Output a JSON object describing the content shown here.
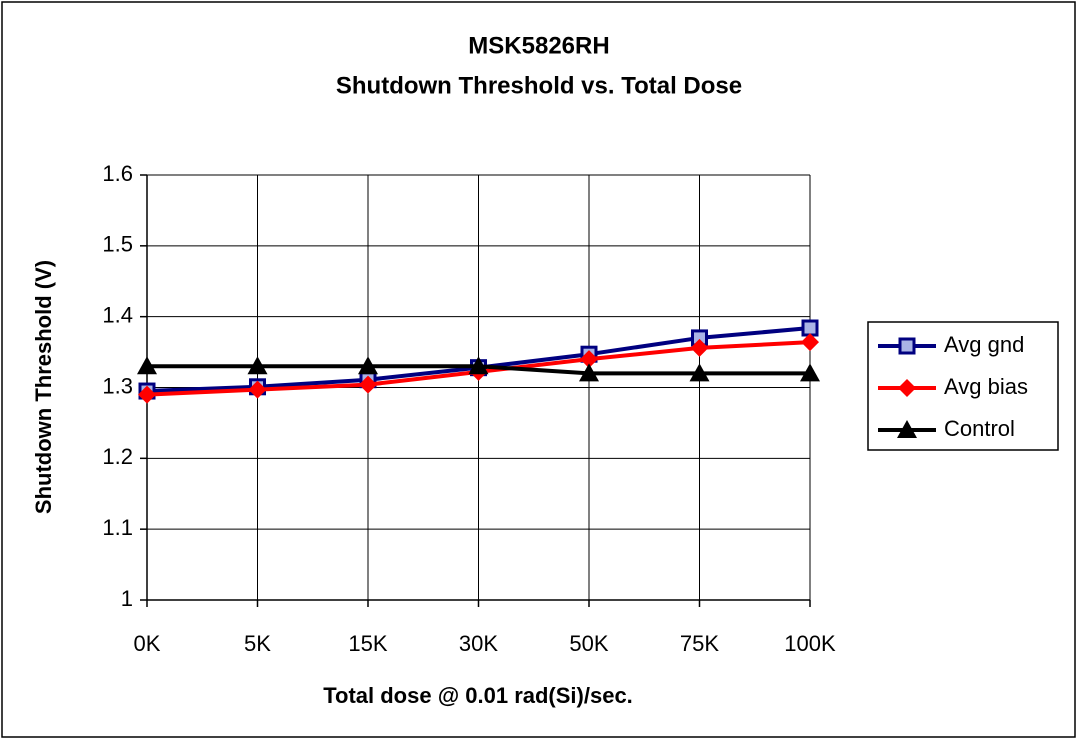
{
  "chart_data": {
    "type": "line",
    "title": "MSK5826RH",
    "subtitle": "Shutdown Threshold vs. Total Dose",
    "x_label": "Total dose @ 0.01 rad(Si)/sec.",
    "y_label": "Shutdown Threshold (V)",
    "categories": [
      "0K",
      "5K",
      "15K",
      "30K",
      "50K",
      "75K",
      "100K"
    ],
    "series": [
      {
        "name": "Avg gnd",
        "color": "#000080",
        "marker": "square",
        "values": [
          1.295,
          1.301,
          1.311,
          1.328,
          1.347,
          1.37,
          1.384
        ]
      },
      {
        "name": "Avg bias",
        "color": "#ff0000",
        "marker": "diamond",
        "values": [
          1.29,
          1.297,
          1.304,
          1.322,
          1.34,
          1.356,
          1.364
        ]
      },
      {
        "name": "Control",
        "color": "#000000",
        "marker": "triangle",
        "values": [
          1.33,
          1.33,
          1.33,
          1.33,
          1.32,
          1.32,
          1.32
        ]
      }
    ],
    "ylim": [
      1,
      1.6
    ],
    "yticks": [
      1,
      1.1,
      1.2,
      1.3,
      1.4,
      1.5,
      1.6
    ],
    "grid": true,
    "legend": "right"
  }
}
